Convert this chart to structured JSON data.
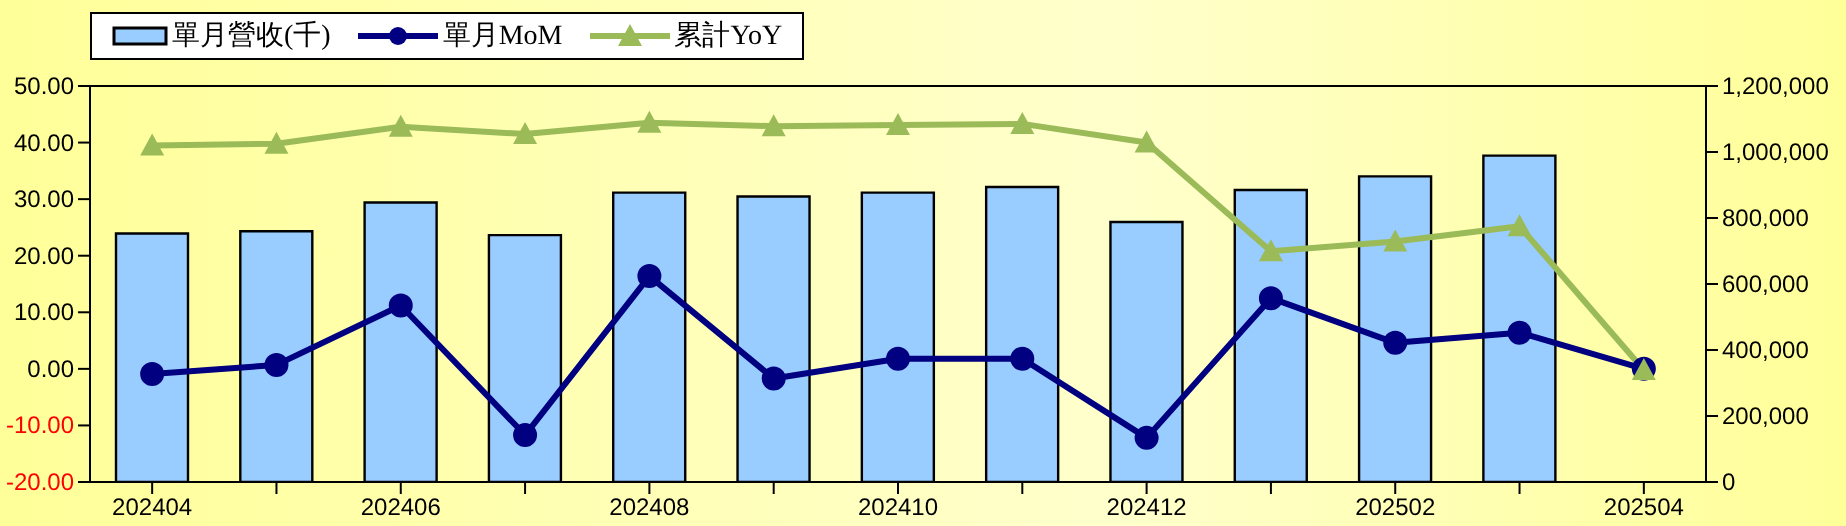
{
  "chart_data": {
    "type": "bar",
    "categories": [
      "202404",
      null,
      "202406",
      null,
      "202408",
      null,
      "202410",
      null,
      "202412",
      null,
      "202502",
      null,
      "202504"
    ],
    "series": [
      {
        "name": "單月營收(千)",
        "axis": "y2",
        "color": "#99ccff",
        "values": [
          753000,
          760000,
          847000,
          748000,
          877000,
          865000,
          877000,
          894000,
          788000,
          885000,
          926000,
          989000,
          null
        ]
      },
      {
        "name": "單月MoM",
        "type": "line",
        "color": "#000080",
        "marker": "circle",
        "values": [
          -0.9,
          0.7,
          11.2,
          -11.7,
          16.4,
          -1.7,
          1.8,
          1.8,
          -12.2,
          12.5,
          4.6,
          6.4,
          0
        ]
      },
      {
        "name": "累計YoY",
        "type": "line",
        "color": "#9bbb59",
        "marker": "triangle",
        "values": [
          39.5,
          39.8,
          42.8,
          41.5,
          43.5,
          42.9,
          43.1,
          43.3,
          40.0,
          20.8,
          22.5,
          25.2,
          -0.2
        ]
      }
    ],
    "ylim": [
      -20,
      50
    ],
    "yticks": [
      {
        "value": -20,
        "label": "-20.00"
      },
      {
        "value": -10,
        "label": "-10.00"
      },
      {
        "value": 0,
        "label": "0.00"
      },
      {
        "value": 10,
        "label": "10.00"
      },
      {
        "value": 20,
        "label": "20.00"
      },
      {
        "value": 30,
        "label": "30.00"
      },
      {
        "value": 40,
        "label": "40.00"
      },
      {
        "value": 50,
        "label": "50.00"
      }
    ],
    "y2lim": [
      0,
      1200000
    ],
    "y2ticks": [
      0,
      {
        "value": 200000,
        "label": "200,000"
      },
      {
        "value": 400000,
        "label": "400,000"
      },
      {
        "value": 600000,
        "label": "600,000"
      },
      {
        "value": 800000,
        "label": "800,000"
      },
      {
        "value": 1000000,
        "label": "1,000,000"
      },
      {
        "value": 1200000,
        "label": "1,200,000"
      }
    ],
    "grid": false,
    "legend": "top left"
  }
}
